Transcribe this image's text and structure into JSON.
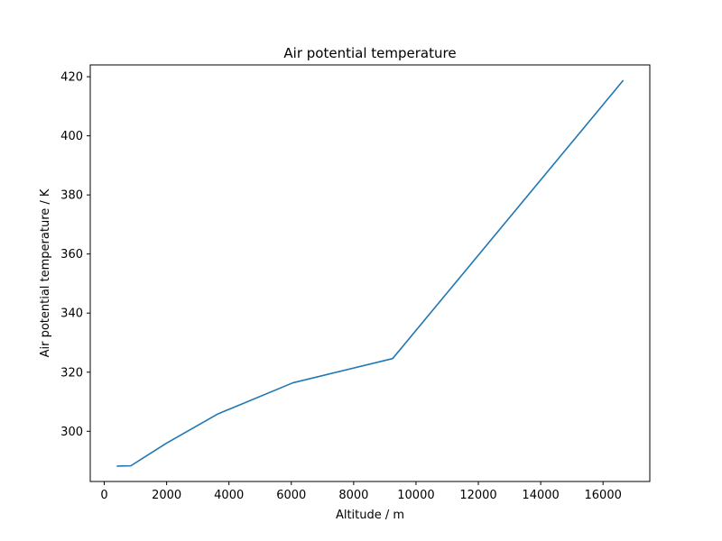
{
  "chart_data": {
    "type": "line",
    "title": "Air potential temperature",
    "xlabel": "Altitude / m",
    "ylabel": "Air potential temperature / K",
    "xlim": [
      -450,
      17500
    ],
    "ylim": [
      283,
      424
    ],
    "xticks": [
      0,
      2000,
      4000,
      6000,
      8000,
      10000,
      12000,
      14000,
      16000
    ],
    "xtick_labels": [
      "0",
      "2000",
      "4000",
      "6000",
      "8000",
      "10000",
      "12000",
      "14000",
      "16000"
    ],
    "yticks": [
      300,
      320,
      340,
      360,
      380,
      400,
      420
    ],
    "ytick_labels": [
      "300",
      "320",
      "340",
      "360",
      "380",
      "400",
      "420"
    ],
    "grid": false,
    "series": [
      {
        "color": "#1f77b4",
        "x": [
          400,
          850,
          2000,
          3650,
          6050,
          9250,
          16650
        ],
        "y": [
          288.2,
          288.3,
          296.0,
          305.9,
          316.4,
          324.6,
          418.8
        ]
      }
    ]
  }
}
